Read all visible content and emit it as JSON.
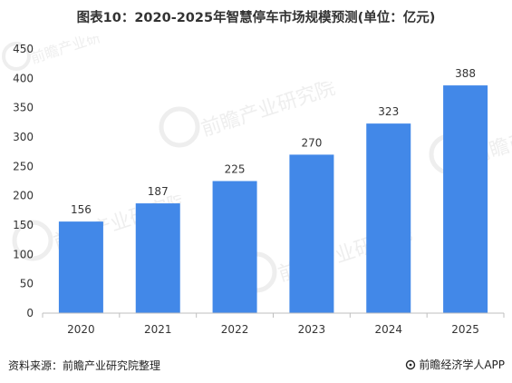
{
  "title": "图表10：2020-2025年智慧停车市场规模预测(单位：亿元)",
  "footer": {
    "source": "资料来源：前瞻产业研究院整理",
    "brand": "前瞻经济学人APP"
  },
  "watermark": {
    "text": "前瞻产业研究院",
    "icon": "qianzhan-logo-icon"
  },
  "colors": {
    "bar": "#4288e8",
    "axis": "#bfbfbf",
    "text": "#333333"
  },
  "chart_data": {
    "type": "bar",
    "categories": [
      "2020",
      "2021",
      "2022",
      "2023",
      "2024",
      "2025"
    ],
    "values": [
      156,
      187,
      225,
      270,
      323,
      388
    ],
    "data_labels": [
      "156",
      "187",
      "225",
      "270",
      "323",
      "388"
    ],
    "title": "图表10：2020-2025年智慧停车市场规模预测(单位：亿元)",
    "xlabel": "",
    "ylabel": "",
    "ylim": [
      0,
      450
    ],
    "yticks": [
      "0",
      "50",
      "100",
      "150",
      "200",
      "250",
      "300",
      "350",
      "400",
      "450"
    ],
    "grid": false,
    "legend": "none"
  }
}
